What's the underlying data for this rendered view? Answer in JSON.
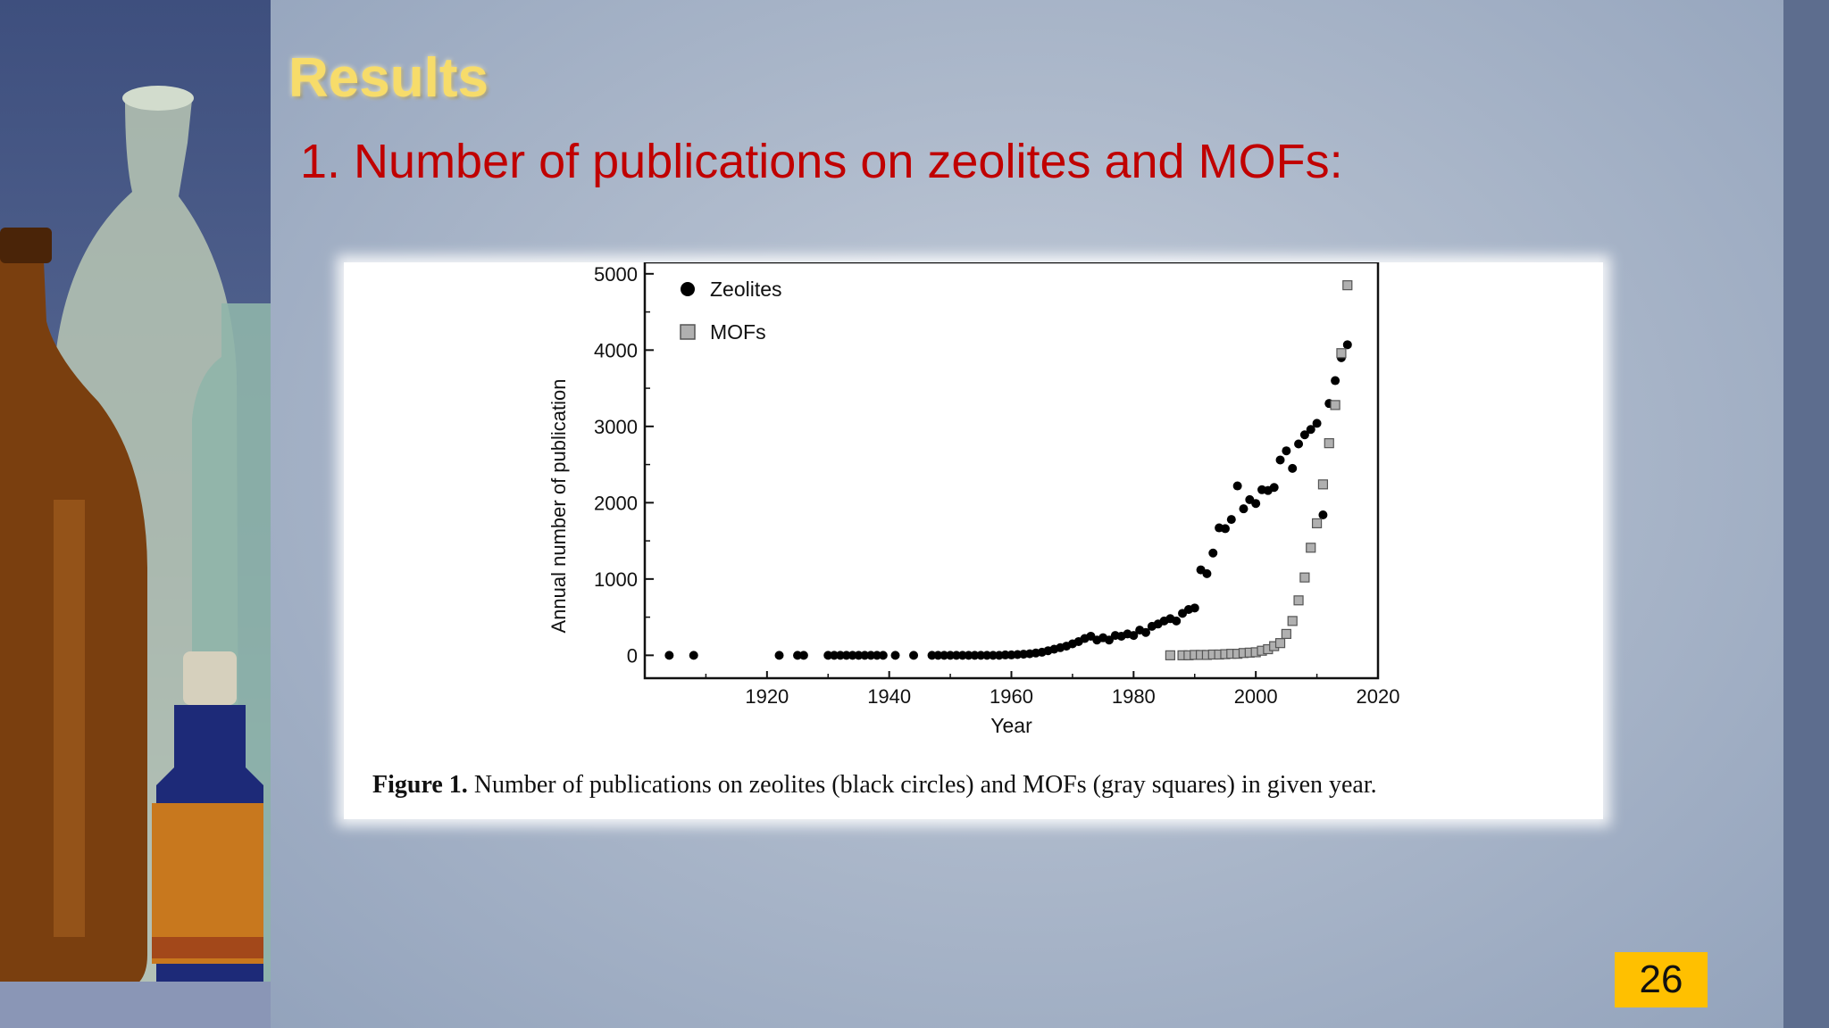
{
  "slide": {
    "title": "Results",
    "subtitle": "1. Number of publications on zeolites and MOFs:",
    "page_number": "26",
    "colors": {
      "title": "#f7dc6a",
      "subtitle": "#c00000",
      "page_badge": "#ffc000"
    }
  },
  "figure": {
    "caption_label": "Figure 1.",
    "caption_text": "Number of publications on zeolites (black circles) and MOFs (gray squares) in given year."
  },
  "chart_data": {
    "type": "scatter",
    "xlabel": "Year",
    "ylabel": "Annual number of publication",
    "xlim": [
      1900,
      2020
    ],
    "ylim": [
      -300,
      5150
    ],
    "x_ticks": [
      1920,
      1940,
      1960,
      1980,
      2000,
      2020
    ],
    "y_ticks": [
      0,
      1000,
      2000,
      3000,
      4000,
      5000
    ],
    "grid": false,
    "legend_position": "top-left",
    "series": [
      {
        "name": "Zeolites",
        "marker": "filled-circle",
        "color": "#000000",
        "x": [
          1904,
          1908,
          1922,
          1925,
          1926,
          1930,
          1931,
          1932,
          1933,
          1934,
          1935,
          1936,
          1937,
          1938,
          1939,
          1941,
          1944,
          1947,
          1948,
          1949,
          1950,
          1951,
          1952,
          1953,
          1954,
          1955,
          1956,
          1957,
          1958,
          1959,
          1960,
          1961,
          1962,
          1963,
          1964,
          1965,
          1966,
          1967,
          1968,
          1969,
          1970,
          1971,
          1972,
          1973,
          1974,
          1975,
          1976,
          1977,
          1978,
          1979,
          1980,
          1981,
          1982,
          1983,
          1984,
          1985,
          1986,
          1987,
          1988,
          1989,
          1990,
          1991,
          1992,
          1993,
          1994,
          1995,
          1996,
          1997,
          1998,
          1999,
          2000,
          2001,
          2002,
          2003,
          2004,
          2005,
          2006,
          2007,
          2008,
          2009,
          2010,
          2011,
          2012,
          2013,
          2014,
          2015
        ],
        "y": [
          0,
          0,
          0,
          0,
          0,
          0,
          0,
          0,
          0,
          0,
          0,
          0,
          0,
          0,
          0,
          0,
          0,
          0,
          0,
          0,
          0,
          0,
          0,
          0,
          0,
          0,
          0,
          0,
          0,
          5,
          5,
          10,
          15,
          20,
          30,
          40,
          60,
          80,
          100,
          120,
          150,
          180,
          220,
          250,
          200,
          230,
          200,
          260,
          250,
          280,
          260,
          330,
          300,
          380,
          410,
          450,
          480,
          450,
          550,
          600,
          620,
          1120,
          1070,
          1340,
          1670,
          1660,
          1780,
          2220,
          1920,
          2040,
          1990,
          2170,
          2160,
          2200,
          2560,
          2680,
          2450,
          2770,
          2890,
          2960,
          3040,
          1840,
          3300,
          3600,
          3900,
          4070
        ]
      },
      {
        "name": "MOFs",
        "marker": "gray-square",
        "color": "#b0b0b0",
        "x": [
          1986,
          1988,
          1989,
          1990,
          1991,
          1992,
          1993,
          1994,
          1995,
          1996,
          1997,
          1998,
          1999,
          2000,
          2001,
          2002,
          2003,
          2004,
          2005,
          2006,
          2007,
          2008,
          2009,
          2010,
          2011,
          2012,
          2013,
          2014,
          2015
        ],
        "y": [
          0,
          0,
          0,
          5,
          5,
          5,
          10,
          10,
          15,
          20,
          20,
          30,
          35,
          40,
          60,
          80,
          120,
          160,
          280,
          450,
          720,
          1020,
          1410,
          1730,
          2240,
          2780,
          3280,
          3960,
          4850
        ]
      }
    ]
  }
}
